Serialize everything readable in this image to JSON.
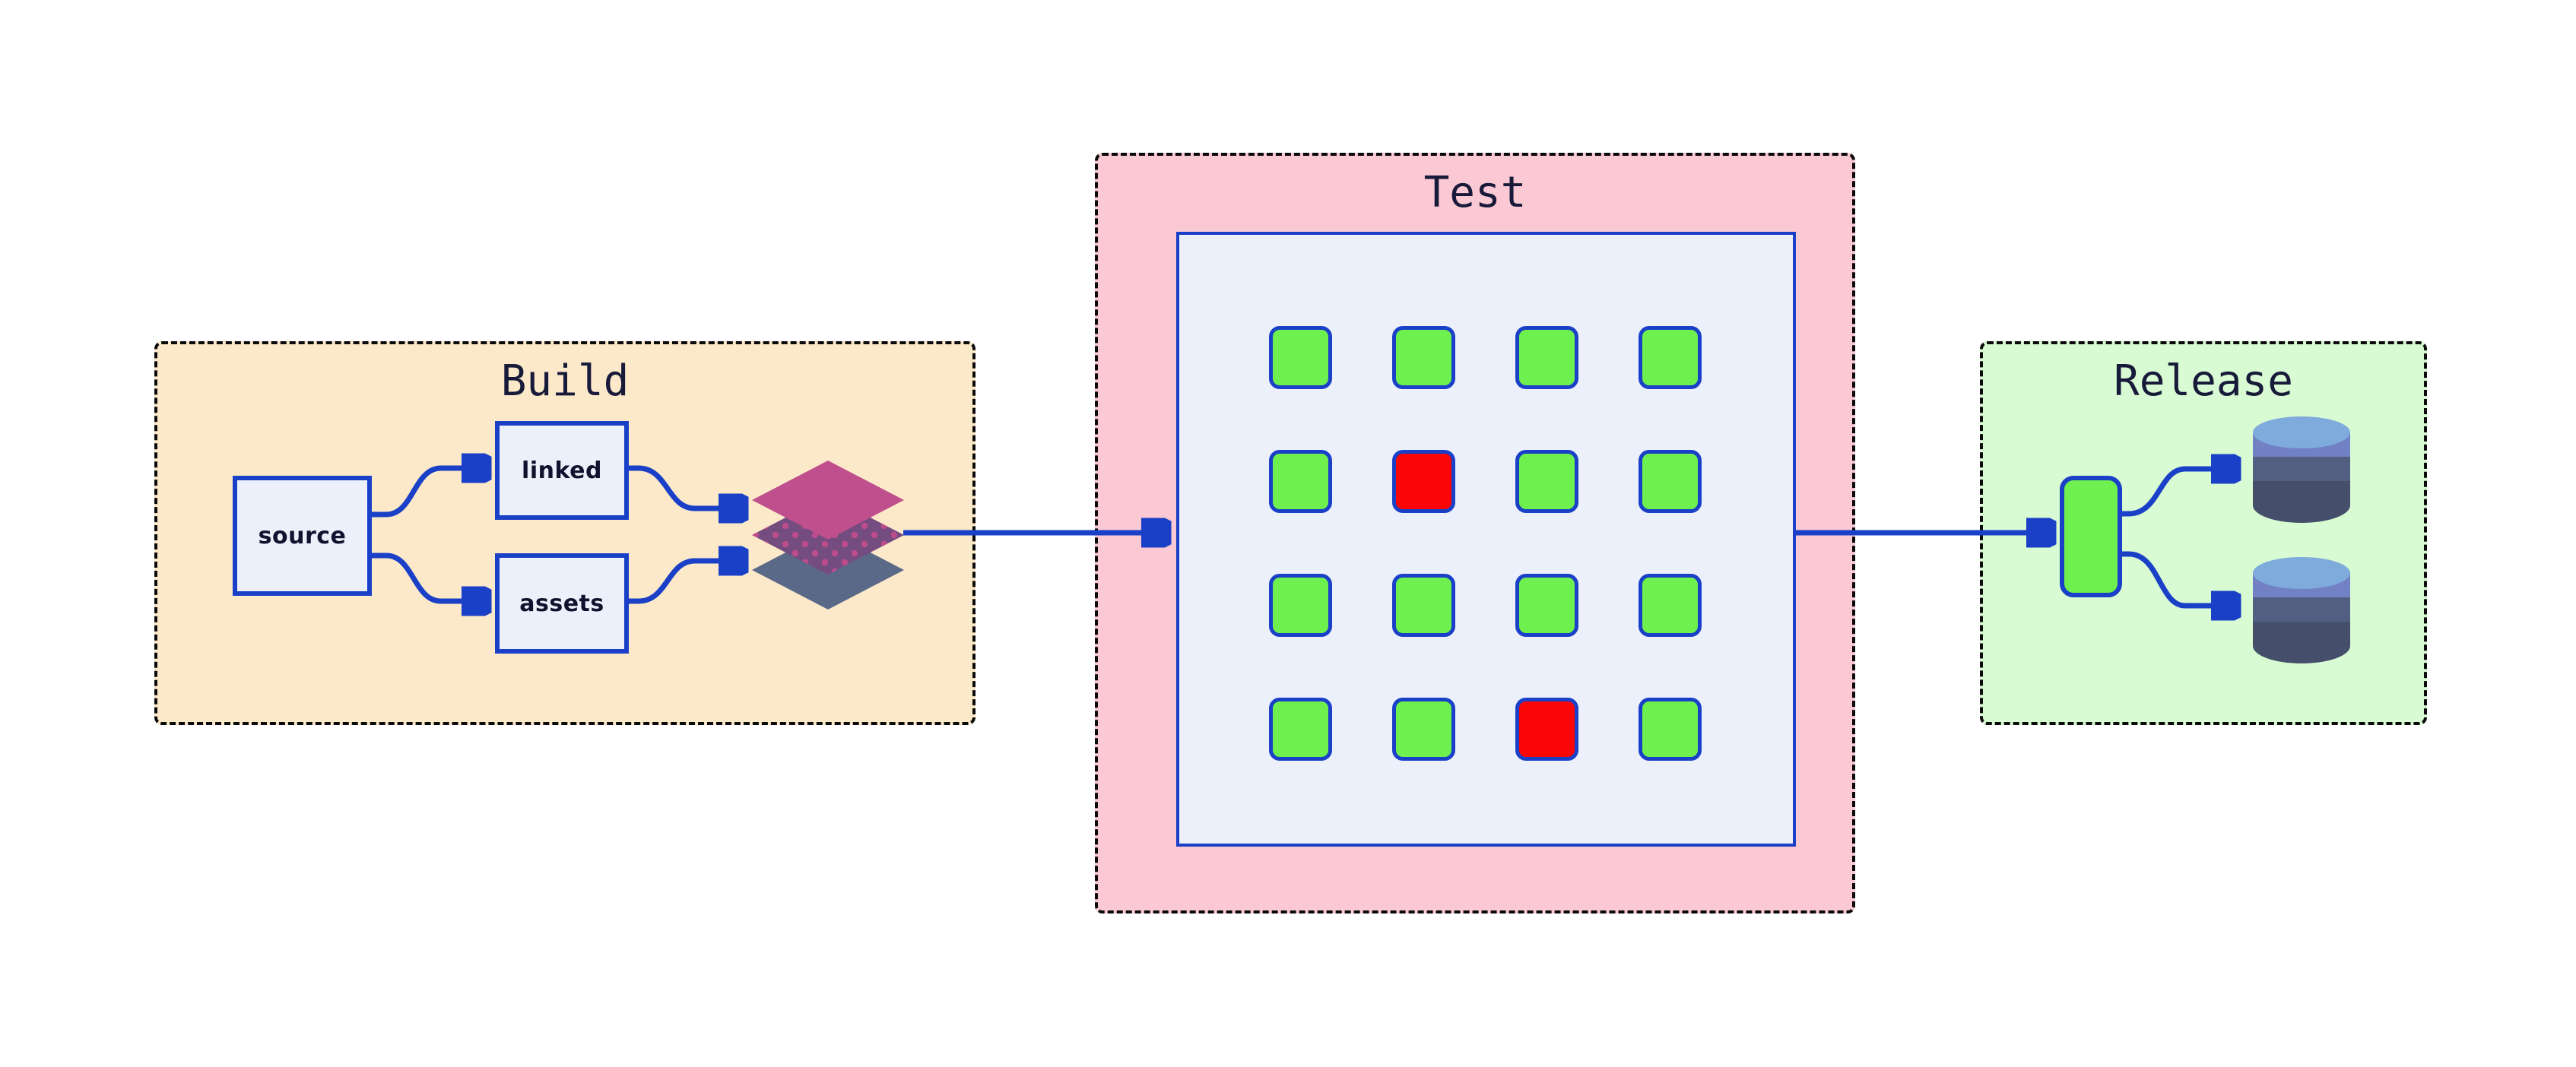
{
  "colors": {
    "accent_blue": "#1A40C8",
    "navy_text": "#181A3A",
    "border_dark": "#0A0A0A",
    "node_fill": "#EBF0FA",
    "build_bg": "#FCE9CA",
    "test_bg": "#FBC9D4",
    "release_bg": "#D9FBD3",
    "pass_green": "#6EF04F",
    "fail_red": "#FB0606",
    "layer_top": "#BF4F8D",
    "layer_mid": "#744C80",
    "layer_dot": "#BE4C8C",
    "layer_bottom": "#5A6988",
    "db_top": "#7EAADC",
    "db_band1": "#7181C4",
    "db_band2": "#525E82",
    "db_band3": "#454E6A"
  },
  "build": {
    "title": "Build",
    "source_label": "source",
    "linked_label": "linked",
    "assets_label": "assets"
  },
  "test": {
    "title": "Test",
    "grid": {
      "rows": 4,
      "cols": 4,
      "cells": [
        "pass",
        "pass",
        "pass",
        "pass",
        "pass",
        "fail",
        "pass",
        "pass",
        "pass",
        "pass",
        "pass",
        "pass",
        "pass",
        "pass",
        "fail",
        "pass"
      ]
    }
  },
  "release": {
    "title": "Release"
  }
}
